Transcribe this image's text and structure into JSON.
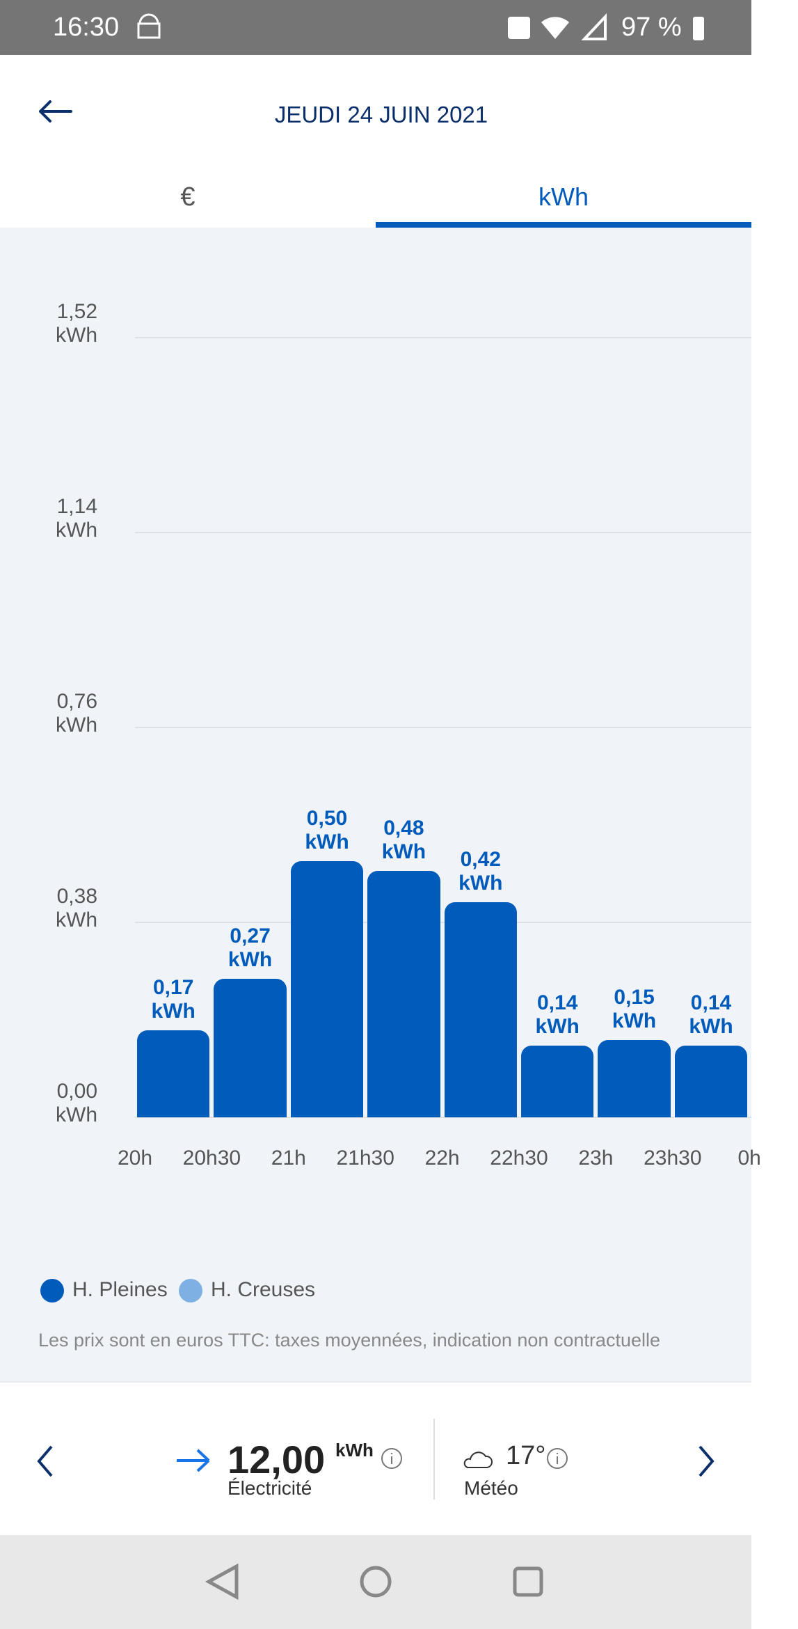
{
  "status": {
    "time": "16:30",
    "battery": "97 %"
  },
  "header": {
    "title": "JEUDI 24 JUIN 2021"
  },
  "tabs": [
    "€",
    "kWh"
  ],
  "chart_data": {
    "type": "bar",
    "categories": [
      "20h",
      "20h30",
      "21h",
      "21h30",
      "22h",
      "22h30",
      "23h",
      "23h30",
      "0h"
    ],
    "series": [
      {
        "name": "H. Pleines",
        "color": "#005bbb",
        "values": [
          0.17,
          0.27,
          0.5,
          0.48,
          0.42,
          0.14,
          0.15,
          0.14,
          null
        ],
        "value_labels": [
          "0,17 kWh",
          "0,27 kWh",
          "0,50 kWh",
          "0,48 kWh",
          "0,42 kWh",
          "0,14 kWh",
          "0,15 kWh",
          "0,14 kWh",
          null
        ]
      },
      {
        "name": "H. Creuses",
        "color": "#7fb0e3",
        "values": [
          null,
          null,
          null,
          null,
          null,
          null,
          null,
          null,
          null
        ]
      }
    ],
    "ylim": [
      0,
      1.52
    ],
    "yticks": [
      {
        "value": 0,
        "label": "0,00 kWh"
      },
      {
        "value": 0.38,
        "label": "0,38 kWh"
      },
      {
        "value": 0.76,
        "label": "0,76 kWh"
      },
      {
        "value": 1.14,
        "label": "1,14 kWh"
      },
      {
        "value": 1.52,
        "label": "1,52 kWh"
      }
    ],
    "grid": true
  },
  "footnote": "Les prix sont en euros TTC: taxes moyennées, indication non contractuelle",
  "summary": {
    "value": "12,00",
    "unit": "kWh",
    "label": "Électricité"
  },
  "weather": {
    "temp": "17°",
    "label": "Météo"
  }
}
